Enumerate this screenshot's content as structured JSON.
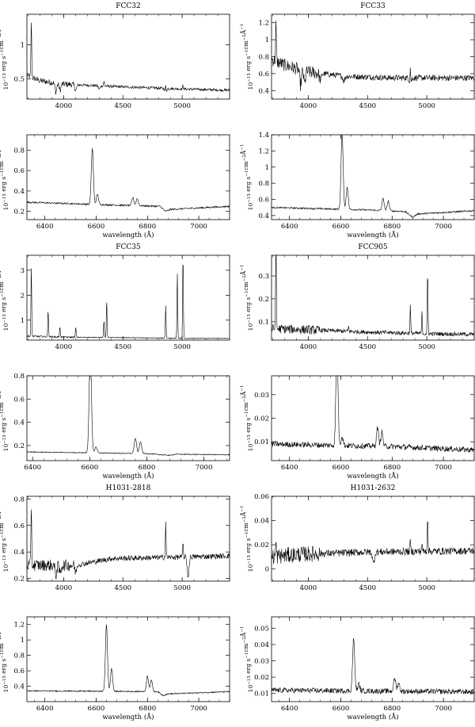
{
  "figure": {
    "ylabel_prefix": "10",
    "ylabel_exp": "−15",
    "ylabel_rest": " erg s",
    "ylabel_exp2": "−1",
    "ylabel_rest2": "cm",
    "ylabel_exp3": "−2",
    "ylabel_rest3": "Å",
    "ylabel_exp4": "−1",
    "xlabel_red": "wavelength (Å)"
  },
  "chart_data": [
    {
      "type": "line",
      "title": "FCC32",
      "xlabel": "",
      "ylabel": "10−15 erg s−1cm−2Å−1",
      "xlim": [
        3690,
        5400
      ],
      "ylim": [
        0.2,
        1.45
      ],
      "xticks": [
        4000,
        4500,
        5000
      ],
      "yticks": [
        0.5,
        1
      ],
      "ytick_labels": [
        "0.5",
        "1"
      ],
      "continuum": [
        [
          3690,
          0.55
        ],
        [
          3800,
          0.47
        ],
        [
          4000,
          0.42
        ],
        [
          4500,
          0.38
        ],
        [
          5000,
          0.35
        ],
        [
          5400,
          0.33
        ]
      ],
      "lines": [
        [
          3727,
          0.85
        ],
        [
          4340,
          0.07
        ],
        [
          4861,
          0.1
        ],
        [
          5007,
          0.06
        ]
      ],
      "absorption": [
        [
          3934,
          0.13
        ],
        [
          3969,
          0.1
        ],
        [
          4102,
          0.08
        ],
        [
          4300,
          0.05
        ],
        [
          4861,
          0.06
        ]
      ],
      "noise": 0.02
    },
    {
      "type": "line",
      "title": "FCC33",
      "xlabel": "",
      "ylabel": "10−15 erg s−1cm−2Å−1",
      "xlim": [
        3690,
        5400
      ],
      "ylim": [
        0.3,
        1.3
      ],
      "xticks": [
        4000,
        4500,
        5000
      ],
      "yticks": [
        0.4,
        0.6,
        0.8,
        1,
        1.2
      ],
      "ytick_labels": [
        "0.4",
        "0.6",
        "0.8",
        "1",
        "1.2"
      ],
      "continuum": [
        [
          3690,
          0.77
        ],
        [
          3800,
          0.7
        ],
        [
          4000,
          0.62
        ],
        [
          4300,
          0.57
        ],
        [
          4700,
          0.55
        ],
        [
          5400,
          0.55
        ]
      ],
      "lines": [
        [
          3727,
          0.45
        ],
        [
          4861,
          0.2
        ]
      ],
      "absorption": [
        [
          3934,
          0.18
        ],
        [
          3969,
          0.15
        ],
        [
          4102,
          0.09
        ],
        [
          4300,
          0.06
        ],
        [
          4861,
          0.08
        ]
      ],
      "noise": 0.035
    },
    {
      "type": "line",
      "title": "",
      "xlabel": "wavelength (Å)",
      "ylabel": "10−15 erg s−1cm−2Å−1",
      "xlim": [
        6330,
        7120
      ],
      "ylim": [
        0.12,
        0.95
      ],
      "xticks": [
        6400,
        6600,
        6800,
        7000
      ],
      "yticks": [
        0.2,
        0.4,
        0.6,
        0.8
      ],
      "ytick_labels": [
        "0.2",
        "0.4",
        "0.6",
        "0.8"
      ],
      "continuum": [
        [
          6330,
          0.29
        ],
        [
          6700,
          0.26
        ],
        [
          6850,
          0.25
        ],
        [
          6870,
          0.2
        ],
        [
          6890,
          0.22
        ],
        [
          7120,
          0.25
        ]
      ],
      "lines": [
        [
          6585,
          0.55
        ],
        [
          6605,
          0.1
        ],
        [
          6743,
          0.08
        ],
        [
          6760,
          0.07
        ]
      ],
      "absorption": [],
      "noise": 0.008
    },
    {
      "type": "line",
      "title": "",
      "xlabel": "wavelength (Å)",
      "ylabel": "10−15 erg s−1cm−2Å−1",
      "xlim": [
        6330,
        7120
      ],
      "ylim": [
        0.35,
        1.4
      ],
      "xticks": [
        6400,
        6600,
        6800,
        7000
      ],
      "yticks": [
        0.4,
        0.6,
        0.8,
        1,
        1.2,
        1.4
      ],
      "ytick_labels": [
        "0.4",
        "0.6",
        "0.8",
        "1",
        "1.2",
        "1.4"
      ],
      "continuum": [
        [
          6330,
          0.5
        ],
        [
          6700,
          0.47
        ],
        [
          6850,
          0.45
        ],
        [
          6880,
          0.38
        ],
        [
          6900,
          0.42
        ],
        [
          7120,
          0.46
        ]
      ],
      "lines": [
        [
          6605,
          0.95
        ],
        [
          6625,
          0.28
        ],
        [
          6765,
          0.15
        ],
        [
          6785,
          0.12
        ]
      ],
      "absorption": [],
      "noise": 0.01
    },
    {
      "type": "line",
      "title": "FCC35",
      "xlabel": "",
      "ylabel": "10−15 erg s−1cm−2Å−1",
      "xlim": [
        3690,
        5400
      ],
      "ylim": [
        0.2,
        3.6
      ],
      "xticks": [
        4000,
        4500,
        5000
      ],
      "yticks": [
        1,
        2,
        3
      ],
      "ytick_labels": [
        "1",
        "2",
        "3"
      ],
      "continuum": [
        [
          3690,
          0.36
        ],
        [
          4000,
          0.32
        ],
        [
          4500,
          0.3
        ],
        [
          5000,
          0.27
        ],
        [
          5400,
          0.27
        ]
      ],
      "lines": [
        [
          3727,
          2.8
        ],
        [
          3869,
          1.1
        ],
        [
          3968,
          0.45
        ],
        [
          4102,
          0.4
        ],
        [
          4340,
          0.7
        ],
        [
          4363,
          1.5
        ],
        [
          4861,
          1.3
        ],
        [
          4959,
          2.6
        ],
        [
          5007,
          3.4
        ]
      ],
      "absorption": [],
      "noise": 0.015
    },
    {
      "type": "line",
      "title": "FCC905",
      "xlabel": "",
      "ylabel": "10−15 erg s−1cm−2Å−1",
      "xlim": [
        3690,
        5400
      ],
      "ylim": [
        0.02,
        0.39
      ],
      "xticks": [
        4000,
        4500,
        5000
      ],
      "yticks": [
        0.1,
        0.2,
        0.3
      ],
      "ytick_labels": [
        "0.1",
        "0.2",
        "0.3"
      ],
      "continuum": [
        [
          3690,
          0.07
        ],
        [
          4000,
          0.065
        ],
        [
          4500,
          0.055
        ],
        [
          5000,
          0.048
        ],
        [
          5400,
          0.045
        ]
      ],
      "lines": [
        [
          3727,
          0.45
        ],
        [
          4340,
          0.02
        ],
        [
          4861,
          0.12
        ],
        [
          4959,
          0.09
        ],
        [
          5007,
          0.27
        ]
      ],
      "absorption": [],
      "noise": 0.009
    },
    {
      "type": "line",
      "title": "",
      "xlabel": "wavelength (Å)",
      "ylabel": "10−15 erg s−1cm−2Å−1",
      "xlim": [
        6380,
        7090
      ],
      "ylim": [
        0.07,
        0.8
      ],
      "xticks": [
        6400,
        6600,
        6800,
        7000
      ],
      "yticks": [
        0.2,
        0.4,
        0.6,
        0.8
      ],
      "ytick_labels": [
        "0.2",
        "0.4",
        "0.6",
        "0.8"
      ],
      "continuum": [
        [
          6380,
          0.145
        ],
        [
          6800,
          0.13
        ],
        [
          6880,
          0.115
        ],
        [
          6900,
          0.125
        ],
        [
          7090,
          0.12
        ]
      ],
      "lines": [
        [
          6602,
          0.9
        ],
        [
          6622,
          0.05
        ],
        [
          6760,
          0.13
        ],
        [
          6778,
          0.1
        ]
      ],
      "absorption": [],
      "noise": 0.004
    },
    {
      "type": "line",
      "title": "",
      "xlabel": "wavelength (Å)",
      "ylabel": "10−15 erg s−1cm−2Å−1",
      "xlim": [
        6330,
        7120
      ],
      "ylim": [
        0.002,
        0.038
      ],
      "xticks": [
        6400,
        6600,
        6800,
        7000
      ],
      "yticks": [
        0.01,
        0.02,
        0.03
      ],
      "ytick_labels": [
        "0.01",
        "0.02",
        "0.03"
      ],
      "continuum": [
        [
          6330,
          0.009
        ],
        [
          6800,
          0.008
        ],
        [
          7120,
          0.0065
        ]
      ],
      "lines": [
        [
          6585,
          0.045
        ],
        [
          6605,
          0.004
        ],
        [
          6743,
          0.008
        ],
        [
          6760,
          0.006
        ]
      ],
      "absorption": [],
      "noise": 0.0012
    },
    {
      "type": "line",
      "title": "H1031-2818",
      "xlabel": "",
      "ylabel": "10−15 erg s−1cm−2Å−1",
      "xlim": [
        3690,
        5400
      ],
      "ylim": [
        0.18,
        0.82
      ],
      "xticks": [
        4000,
        4500,
        5000
      ],
      "yticks": [
        0.2,
        0.4,
        0.6,
        0.8
      ],
      "ytick_labels": [
        "0.2",
        "0.4",
        "0.6",
        "0.8"
      ],
      "continuum": [
        [
          3690,
          0.3
        ],
        [
          3900,
          0.3
        ],
        [
          4100,
          0.3
        ],
        [
          4400,
          0.35
        ],
        [
          5400,
          0.37
        ]
      ],
      "lines": [
        [
          3727,
          0.47
        ],
        [
          4861,
          0.27
        ],
        [
          5007,
          0.1
        ]
      ],
      "absorption": [
        [
          3934,
          0.07
        ],
        [
          3969,
          0.06
        ],
        [
          4102,
          0.05
        ],
        [
          5050,
          0.15
        ]
      ],
      "noise": 0.02
    },
    {
      "type": "line",
      "title": "H1031-2632",
      "xlabel": "",
      "ylabel": "10−15 erg s−1cm−2Å−1",
      "xlim": [
        3690,
        5400
      ],
      "ylim": [
        -0.01,
        0.06
      ],
      "xticks": [
        4000,
        4500,
        5000
      ],
      "yticks": [
        0,
        0.02,
        0.04,
        0.06
      ],
      "ytick_labels": [
        "0",
        "0.02",
        "0.04",
        "0.06"
      ],
      "continuum": [
        [
          3690,
          0.01
        ],
        [
          3900,
          0.012
        ],
        [
          4500,
          0.014
        ],
        [
          5400,
          0.015
        ]
      ],
      "lines": [
        [
          3727,
          0.012
        ],
        [
          4861,
          0.009
        ],
        [
          4959,
          0.007
        ],
        [
          5007,
          0.03
        ]
      ],
      "absorption": [
        [
          4550,
          0.01
        ]
      ],
      "noise": 0.003
    },
    {
      "type": "line",
      "title": "",
      "xlabel": "wavelength (Å)",
      "ylabel": "10−15 erg s−1cm−2Å−1",
      "xlim": [
        6330,
        7120
      ],
      "ylim": [
        0.2,
        1.3
      ],
      "xticks": [
        6400,
        6600,
        6800,
        7000
      ],
      "yticks": [
        0.4,
        0.6,
        0.8,
        1,
        1.2
      ],
      "ytick_labels": [
        "0.4",
        "0.6",
        "0.8",
        "1",
        "1.2"
      ],
      "continuum": [
        [
          6330,
          0.34
        ],
        [
          6840,
          0.33
        ],
        [
          6860,
          0.28
        ],
        [
          6880,
          0.3
        ],
        [
          7120,
          0.33
        ]
      ],
      "lines": [
        [
          6640,
          0.87
        ],
        [
          6660,
          0.3
        ],
        [
          6800,
          0.2
        ],
        [
          6815,
          0.15
        ]
      ],
      "absorption": [],
      "noise": 0.008
    },
    {
      "type": "line",
      "title": "",
      "xlabel": "wavelength (Å)",
      "ylabel": "10−15 erg s−1cm−2Å−1",
      "xlim": [
        6330,
        7120
      ],
      "ylim": [
        0.005,
        0.057
      ],
      "xticks": [
        6400,
        6600,
        6800,
        7000
      ],
      "yticks": [
        0.01,
        0.02,
        0.03,
        0.04,
        0.05
      ],
      "ytick_labels": [
        "0.01",
        "0.02",
        "0.03",
        "0.04",
        "0.05"
      ],
      "continuum": [
        [
          6330,
          0.012
        ],
        [
          7120,
          0.011
        ]
      ],
      "lines": [
        [
          6650,
          0.032
        ],
        [
          6670,
          0.004
        ],
        [
          6810,
          0.008
        ],
        [
          6825,
          0.005
        ]
      ],
      "absorption": [],
      "noise": 0.0016
    }
  ]
}
